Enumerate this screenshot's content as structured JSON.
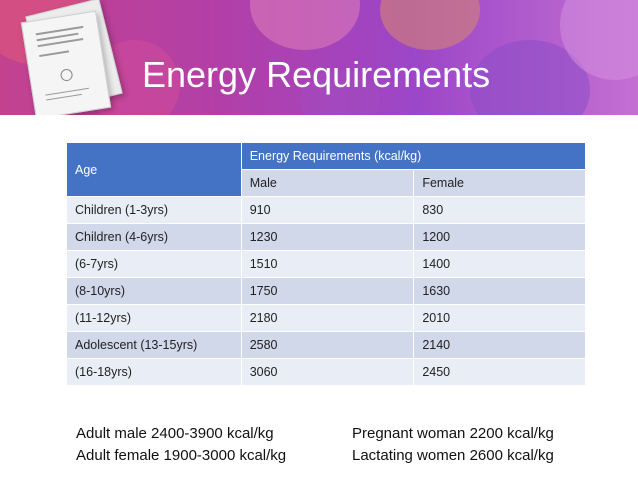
{
  "slide": {
    "title": "Energy Requirements"
  },
  "table": {
    "age_header": "Age",
    "group_header": "Energy Requirements (kcal/kg)",
    "sub_headers": [
      "Male",
      "Female"
    ],
    "rows": [
      {
        "age": "Children (1-3yrs)",
        "male": "910",
        "female": "830"
      },
      {
        "age": "Children (4-6yrs)",
        "male": "1230",
        "female": "1200"
      },
      {
        "age": "(6-7yrs)",
        "male": "1510",
        "female": "1400"
      },
      {
        "age": "(8-10yrs)",
        "male": "1750",
        "female": "1630"
      },
      {
        "age": "(11-12yrs)",
        "male": "2180",
        "female": "2010"
      },
      {
        "age": "Adolescent (13-15yrs)",
        "male": "2580",
        "female": "2140"
      },
      {
        "age": "(16-18yrs)",
        "male": "3060",
        "female": "2450"
      }
    ]
  },
  "notes": {
    "left": [
      "Adult male 2400-3900 kcal/kg",
      "Adult female 1900-3000 kcal/kg"
    ],
    "right": [
      "Pregnant woman 2200 kcal/kg",
      "Lactating women 2600 kcal/kg"
    ]
  },
  "colors": {
    "header_blue": "#4472c4",
    "row_light": "#e9edf5",
    "row_dark": "#d0d8ea",
    "banner_accent": "#b23fa8"
  }
}
